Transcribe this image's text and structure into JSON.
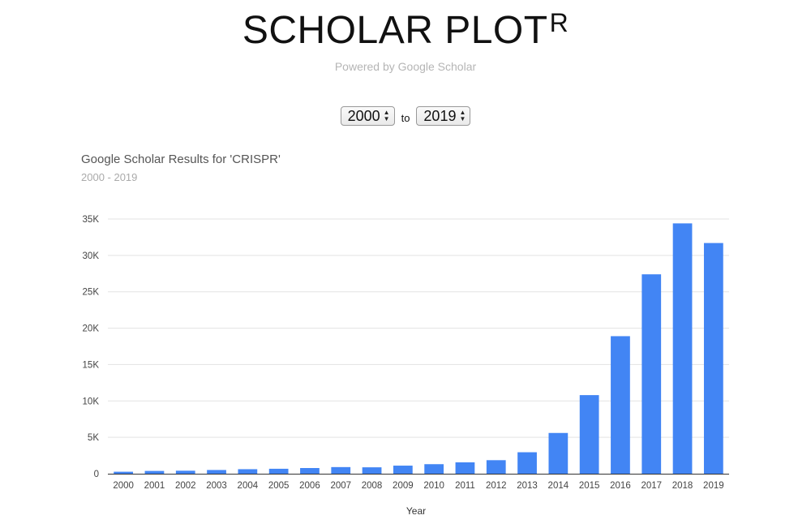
{
  "header": {
    "title": "SCHOLAR PLOT",
    "title_superscript": "R",
    "subtitle": "Powered by Google Scholar"
  },
  "range": {
    "from_year": "2000",
    "to_label": "to",
    "to_year": "2019"
  },
  "colors": {
    "bar": "#4285f4",
    "grid": "#e3e3e3",
    "axis": "#333333"
  },
  "chart_data": {
    "type": "bar",
    "title": "Google Scholar Results for 'CRISPR'",
    "subtitle": "2000 - 2019",
    "xlabel": "Year",
    "ylabel": "",
    "ylim": [
      0,
      35000
    ],
    "y_ticks": [
      0,
      5000,
      10000,
      15000,
      20000,
      25000,
      30000,
      35000
    ],
    "y_tick_labels": [
      "0",
      "5K",
      "10K",
      "15K",
      "20K",
      "25K",
      "30K",
      "35K"
    ],
    "grid": true,
    "legend": "none",
    "categories": [
      "2000",
      "2001",
      "2002",
      "2003",
      "2004",
      "2005",
      "2006",
      "2007",
      "2008",
      "2009",
      "2010",
      "2011",
      "2012",
      "2013",
      "2014",
      "2015",
      "2016",
      "2017",
      "2018",
      "2019"
    ],
    "values": [
      270,
      380,
      410,
      510,
      620,
      680,
      780,
      910,
      880,
      1110,
      1310,
      1560,
      1860,
      2950,
      5600,
      10800,
      18900,
      27400,
      34400,
      31700
    ]
  }
}
